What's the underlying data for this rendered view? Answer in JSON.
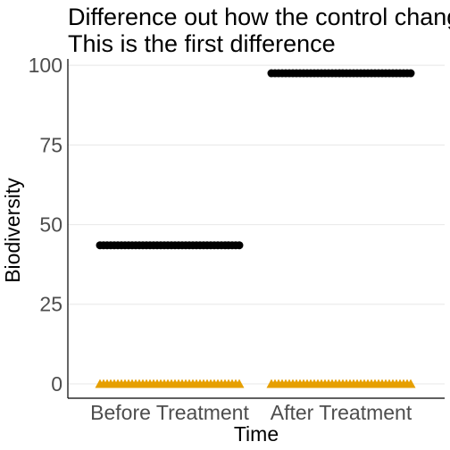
{
  "chart_data": {
    "type": "scatter",
    "title": "Difference out how the control changed",
    "subtitle": "This is the first difference",
    "xlabel": "Time",
    "ylabel": "Biodiversity",
    "categories": [
      "Before Treatment",
      "After Treatment"
    ],
    "ylim": [
      -4.5,
      102
    ],
    "yticks": [
      0,
      25,
      50,
      75,
      100
    ],
    "grid": true,
    "legend": "none",
    "series": [
      {
        "marker": "circle",
        "color": "#000000",
        "values": [
          43.5,
          97.5
        ]
      },
      {
        "marker": "triangle",
        "color": "#E69F00",
        "values": [
          0,
          0
        ]
      }
    ]
  }
}
